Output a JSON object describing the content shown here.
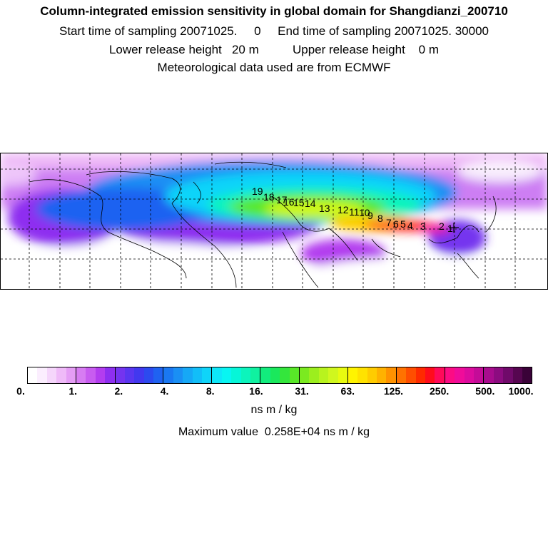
{
  "header": {
    "title": "Column-integrated emission sensitivity in global domain for Shangdianzi_200710",
    "sampling_line": "Start time of sampling 20071025.     0     End time of sampling 20071025. 30000",
    "release_line": "Lower release height   20 m          Upper release height    0 m",
    "met_line": "Meteorological data used are from ECMWF"
  },
  "colorbar": {
    "tick_labels": [
      "0.",
      "1.",
      "2.",
      "4.",
      "8.",
      "16.",
      "31.",
      "63.",
      "125.",
      "250.",
      "500.",
      "1000."
    ],
    "colors": [
      "#ffffff",
      "#fbeefe",
      "#f5d6fb",
      "#efbaf8",
      "#e59df5",
      "#d77cf2",
      "#c85cf0",
      "#b33def",
      "#8e2ff0",
      "#7434ef",
      "#5a36f0",
      "#4238ef",
      "#2c4aef",
      "#1f62f1",
      "#1a78f2",
      "#1a8ff4",
      "#16a8f6",
      "#12bef8",
      "#0fd4f9",
      "#0ee6f8",
      "#08f5f2",
      "#06f6d8",
      "#0cf4bc",
      "#10f1a0",
      "#12ec7d",
      "#1ae85c",
      "#34e63c",
      "#58e828",
      "#7bea20",
      "#9cee1e",
      "#b8f31e",
      "#d0f71e",
      "#e8fb10",
      "#fff400",
      "#ffe200",
      "#ffcc00",
      "#ffb200",
      "#ff9200",
      "#ff7200",
      "#ff4e00",
      "#ff2a00",
      "#ff0c1c",
      "#ff0a5a",
      "#fc0c84",
      "#f00c9a",
      "#dc0c9e",
      "#c40c98",
      "#a80c8e",
      "#8c0c80",
      "#700a6a",
      "#560650",
      "#3a0238"
    ],
    "units": "ns m / kg",
    "max_value": "Maximum value  0.258E+04 ns m / kg"
  },
  "map": {
    "receptor": "Shangdianzi",
    "trajectory_labels": [
      "19",
      "18",
      "17",
      "16",
      "15",
      "14",
      "13",
      "12",
      "11",
      "10",
      "9",
      "8",
      "7",
      "6",
      "5",
      "4",
      "3",
      "2",
      "1"
    ]
  }
}
